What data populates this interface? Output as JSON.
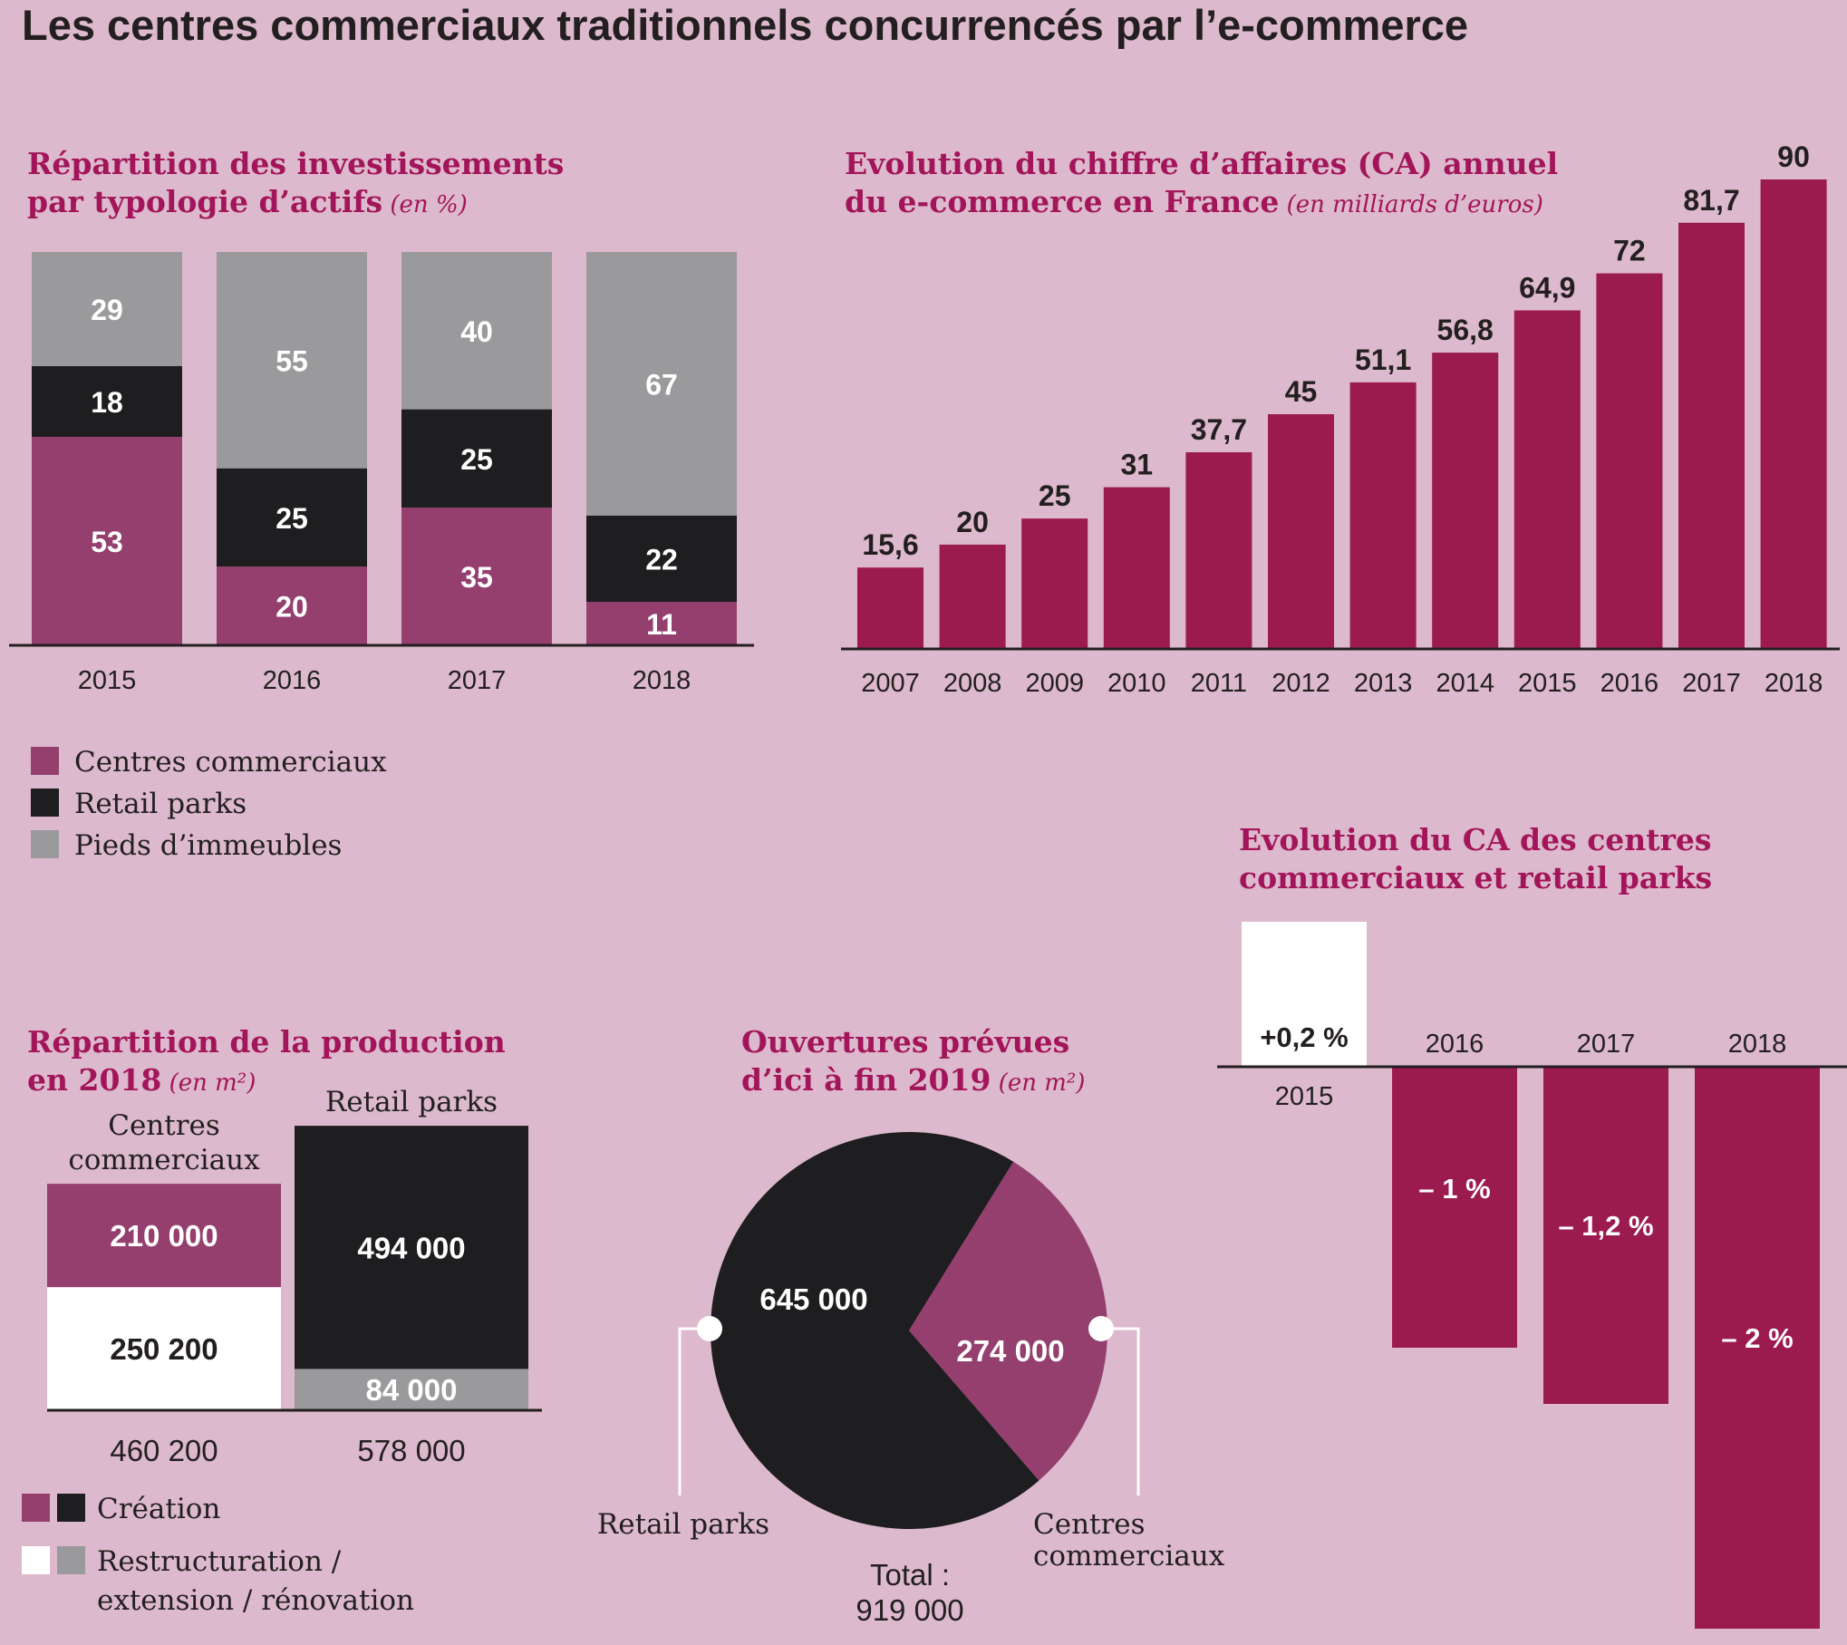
{
  "page": {
    "title": "Les centres commerciaux traditionnels concurrencés par l’e-commerce"
  },
  "colors": {
    "background": "#dcb9cc",
    "plum": "#943f6e",
    "crimson": "#9c1b4f",
    "black": "#1e1d1f",
    "grey": "#9a999c",
    "white": "#ffffff",
    "heading": "#a3155a"
  },
  "chart_data": [
    {
      "id": "investissements",
      "type": "bar",
      "stacked": true,
      "title": "Répartition des investissements",
      "title_line2": "par typologie d’actifs",
      "unit": "(en %)",
      "categories": [
        "2015",
        "2016",
        "2017",
        "2018"
      ],
      "series": [
        {
          "name": "Centres commerciaux",
          "color": "#943f6e",
          "values": [
            53,
            20,
            35,
            11
          ]
        },
        {
          "name": "Retail parks",
          "color": "#1e1d1f",
          "values": [
            18,
            25,
            25,
            22
          ]
        },
        {
          "name": "Pieds d’immeubles",
          "color": "#9a999c",
          "values": [
            29,
            55,
            40,
            67
          ]
        }
      ],
      "ylim": [
        0,
        100
      ],
      "legend_position": "bottom-left"
    },
    {
      "id": "ecommerce",
      "type": "bar",
      "title": "Evolution du chiffre d’affaires (CA) annuel",
      "title_line2": "du e-commerce en France",
      "unit": "(en milliards d’euros)",
      "categories": [
        "2007",
        "2008",
        "2009",
        "2010",
        "2011",
        "2012",
        "2013",
        "2014",
        "2015",
        "2016",
        "2017",
        "2018"
      ],
      "values": [
        15.6,
        20,
        25,
        31,
        37.7,
        45,
        51.1,
        56.8,
        64.9,
        72,
        81.7,
        90
      ],
      "labels": [
        "15,6",
        "20",
        "25",
        "31",
        "37,7",
        "45",
        "51,1",
        "56,8",
        "64,9",
        "72",
        "81,7",
        "90"
      ],
      "color": "#9c1b4f",
      "ylim": [
        0,
        90
      ]
    },
    {
      "id": "ca_centres",
      "type": "bar",
      "title": "Evolution du CA des centres",
      "title_line2": "commerciaux et retail parks",
      "categories": [
        "2015",
        "2016",
        "2017",
        "2018"
      ],
      "values": [
        0.2,
        -1,
        -1.2,
        -2
      ],
      "labels": [
        "+0,2 %",
        "– 1 %",
        "– 1,2 %",
        "– 2 %"
      ],
      "colors": [
        "#ffffff",
        "#9c1b4f",
        "#9c1b4f",
        "#9c1b4f"
      ]
    },
    {
      "id": "production",
      "type": "bar",
      "stacked": true,
      "title": "Répartition de la production",
      "title_line2": "en 2018",
      "unit": "(en m²)",
      "categories": [
        "Centres commerciaux",
        "Retail parks"
      ],
      "category_lines": [
        [
          "Centres",
          "commerciaux"
        ],
        [
          "Retail parks"
        ]
      ],
      "creation": {
        "values": [
          210000,
          494000
        ],
        "labels": [
          "210 000",
          "494 000"
        ],
        "colors": [
          "#943f6e",
          "#1e1d1f"
        ]
      },
      "restructuration": {
        "values": [
          250200,
          84000
        ],
        "labels": [
          "250 200",
          "84 000"
        ],
        "colors": [
          "#ffffff",
          "#9a999c"
        ]
      },
      "totals": [
        "460 200",
        "578 000"
      ],
      "legend": [
        {
          "name": "Création",
          "colors": [
            "#943f6e",
            "#1e1d1f"
          ]
        },
        {
          "name": "Restructuration /",
          "name_line2": "extension / rénovation",
          "colors": [
            "#ffffff",
            "#9a999c"
          ]
        }
      ]
    },
    {
      "id": "ouvertures",
      "type": "pie",
      "title": "Ouvertures prévues",
      "title_line2": "d’ici à fin 2019",
      "unit": "(en m²)",
      "slices": [
        {
          "name": "Retail parks",
          "value": 645000,
          "label": "645 000",
          "color": "#1e1d1f"
        },
        {
          "name": "Centres commerciaux",
          "name_lines": [
            "Centres",
            "commerciaux"
          ],
          "value": 274000,
          "label": "274 000",
          "color": "#943f6e"
        }
      ],
      "total_label": "Total :",
      "total_value": "919 000"
    }
  ]
}
